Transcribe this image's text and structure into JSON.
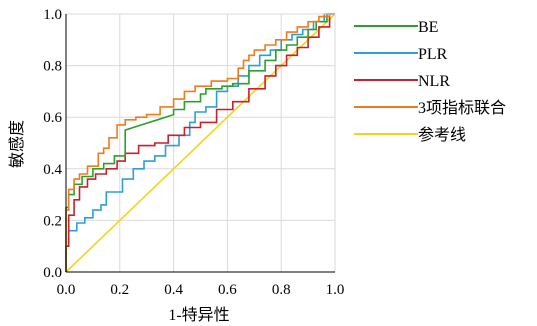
{
  "chart_data": {
    "type": "line",
    "title": "",
    "xlabel": "1-特异性",
    "ylabel": "敏感度",
    "xlim": [
      0,
      1
    ],
    "ylim": [
      0,
      1
    ],
    "x_ticks": [
      "0.0",
      "0.2",
      "0.4",
      "0.6",
      "0.8",
      "1.0"
    ],
    "y_ticks": [
      "0.0",
      "0.2",
      "0.4",
      "0.6",
      "0.8",
      "1.0"
    ],
    "grid": true,
    "legend_position": "right",
    "series": [
      {
        "name": "BE",
        "color": "#2ca02c",
        "x": [
          0,
          0,
          0.01,
          0.01,
          0.03,
          0.03,
          0.06,
          0.06,
          0.1,
          0.1,
          0.14,
          0.14,
          0.18,
          0.18,
          0.22,
          0.22,
          0.28,
          0.34,
          0.4,
          0.4,
          0.44,
          0.44,
          0.5,
          0.5,
          0.52,
          0.52,
          0.58,
          0.58,
          0.62,
          0.62,
          0.68,
          0.68,
          0.74,
          0.74,
          0.78,
          0.78,
          0.82,
          0.82,
          0.86,
          0.86,
          0.9,
          0.9,
          0.93,
          0.93,
          0.97,
          0.97,
          1.0
        ],
        "y": [
          0,
          0.25,
          0.25,
          0.3,
          0.3,
          0.34,
          0.34,
          0.37,
          0.37,
          0.4,
          0.4,
          0.42,
          0.42,
          0.45,
          0.45,
          0.55,
          0.57,
          0.59,
          0.61,
          0.63,
          0.63,
          0.66,
          0.66,
          0.69,
          0.69,
          0.71,
          0.71,
          0.72,
          0.72,
          0.73,
          0.73,
          0.78,
          0.78,
          0.82,
          0.82,
          0.86,
          0.86,
          0.88,
          0.88,
          0.91,
          0.91,
          0.94,
          0.94,
          0.97,
          0.97,
          1.0,
          1.0
        ]
      },
      {
        "name": "PLR",
        "color": "#2f9ed8",
        "x": [
          0,
          0,
          0.01,
          0.01,
          0.04,
          0.04,
          0.07,
          0.07,
          0.1,
          0.1,
          0.13,
          0.13,
          0.15,
          0.15,
          0.21,
          0.21,
          0.25,
          0.25,
          0.29,
          0.29,
          0.33,
          0.33,
          0.37,
          0.37,
          0.42,
          0.42,
          0.46,
          0.46,
          0.48,
          0.48,
          0.52,
          0.52,
          0.56,
          0.56,
          0.6,
          0.6,
          0.64,
          0.64,
          0.68,
          0.68,
          0.72,
          0.72,
          0.76,
          0.76,
          0.8,
          0.8,
          0.84,
          0.84,
          0.88,
          0.88,
          0.92,
          0.92,
          0.96,
          0.96,
          1.0
        ],
        "y": [
          0,
          0.1,
          0.1,
          0.16,
          0.16,
          0.19,
          0.19,
          0.21,
          0.21,
          0.24,
          0.24,
          0.26,
          0.26,
          0.31,
          0.31,
          0.36,
          0.36,
          0.4,
          0.4,
          0.43,
          0.43,
          0.45,
          0.45,
          0.49,
          0.49,
          0.53,
          0.53,
          0.58,
          0.58,
          0.62,
          0.62,
          0.64,
          0.64,
          0.7,
          0.7,
          0.72,
          0.72,
          0.76,
          0.76,
          0.8,
          0.8,
          0.84,
          0.84,
          0.86,
          0.86,
          0.9,
          0.9,
          0.92,
          0.92,
          0.94,
          0.94,
          0.97,
          0.97,
          1.0,
          1.0
        ]
      },
      {
        "name": "NLR",
        "color": "#c8202f",
        "x": [
          0,
          0,
          0.01,
          0.01,
          0.03,
          0.03,
          0.05,
          0.05,
          0.08,
          0.08,
          0.11,
          0.11,
          0.15,
          0.15,
          0.19,
          0.19,
          0.22,
          0.22,
          0.27,
          0.27,
          0.33,
          0.33,
          0.38,
          0.38,
          0.44,
          0.44,
          0.5,
          0.5,
          0.56,
          0.56,
          0.62,
          0.62,
          0.68,
          0.68,
          0.74,
          0.74,
          0.78,
          0.78,
          0.82,
          0.82,
          0.86,
          0.86,
          0.9,
          0.9,
          0.94,
          0.94,
          0.98,
          0.98,
          1.0
        ],
        "y": [
          0,
          0.1,
          0.1,
          0.22,
          0.22,
          0.28,
          0.28,
          0.33,
          0.33,
          0.36,
          0.36,
          0.38,
          0.38,
          0.4,
          0.4,
          0.43,
          0.43,
          0.46,
          0.46,
          0.49,
          0.49,
          0.5,
          0.5,
          0.53,
          0.53,
          0.56,
          0.56,
          0.58,
          0.58,
          0.63,
          0.63,
          0.66,
          0.66,
          0.71,
          0.71,
          0.76,
          0.76,
          0.8,
          0.8,
          0.84,
          0.84,
          0.87,
          0.87,
          0.91,
          0.91,
          0.95,
          0.95,
          1.0,
          1.0
        ]
      },
      {
        "name": "3项指标联合",
        "color": "#f07b1c",
        "x": [
          0,
          0,
          0.01,
          0.01,
          0.03,
          0.03,
          0.05,
          0.05,
          0.08,
          0.08,
          0.12,
          0.12,
          0.14,
          0.14,
          0.16,
          0.16,
          0.19,
          0.19,
          0.22,
          0.22,
          0.26,
          0.26,
          0.3,
          0.3,
          0.35,
          0.35,
          0.4,
          0.4,
          0.44,
          0.44,
          0.48,
          0.48,
          0.54,
          0.54,
          0.6,
          0.6,
          0.64,
          0.64,
          0.66,
          0.66,
          0.68,
          0.68,
          0.7,
          0.7,
          0.74,
          0.74,
          0.78,
          0.78,
          0.82,
          0.82,
          0.86,
          0.86,
          0.9,
          0.9,
          0.94,
          0.94,
          0.98,
          0.98,
          1.0
        ],
        "y": [
          0,
          0.24,
          0.24,
          0.32,
          0.32,
          0.36,
          0.36,
          0.38,
          0.38,
          0.41,
          0.41,
          0.46,
          0.46,
          0.48,
          0.48,
          0.52,
          0.52,
          0.57,
          0.57,
          0.59,
          0.59,
          0.6,
          0.6,
          0.61,
          0.61,
          0.64,
          0.64,
          0.67,
          0.67,
          0.7,
          0.7,
          0.72,
          0.72,
          0.74,
          0.74,
          0.75,
          0.75,
          0.79,
          0.79,
          0.82,
          0.82,
          0.84,
          0.84,
          0.86,
          0.86,
          0.88,
          0.88,
          0.9,
          0.9,
          0.93,
          0.93,
          0.95,
          0.95,
          0.97,
          0.97,
          0.99,
          0.99,
          1.0,
          1.0
        ]
      },
      {
        "name": "参考线",
        "color": "#f5d31a",
        "x": [
          0,
          1
        ],
        "y": [
          0,
          1
        ]
      }
    ]
  }
}
